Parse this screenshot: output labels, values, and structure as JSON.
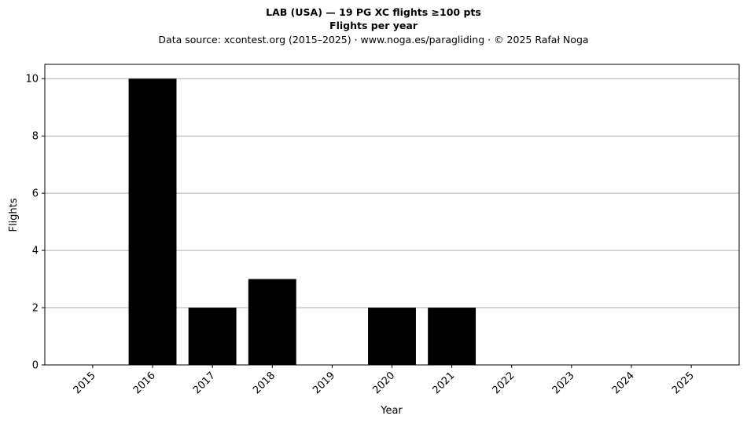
{
  "header": {
    "title": "LAB (USA)  —  19 PG XC flights ≥100 pts",
    "subtitle": "Flights per year",
    "source": "Data source: xcontest.org (2015–2025)  ·  www.noga.es/paragliding  ·  © 2025 Rafał Noga"
  },
  "chart_data": {
    "type": "bar",
    "categories": [
      "2015",
      "2016",
      "2017",
      "2018",
      "2019",
      "2020",
      "2021",
      "2022",
      "2023",
      "2024",
      "2025"
    ],
    "values": [
      0,
      10,
      2,
      3,
      0,
      2,
      2,
      0,
      0,
      0,
      0
    ],
    "xlabel": "Year",
    "ylabel": "Flights",
    "ylim": [
      0,
      10.5
    ],
    "yticks": [
      "0",
      "2",
      "4",
      "6",
      "8",
      "10"
    ],
    "grid": "horizontal",
    "bar_color": "#000000",
    "grid_color": "#b0b0b0"
  }
}
